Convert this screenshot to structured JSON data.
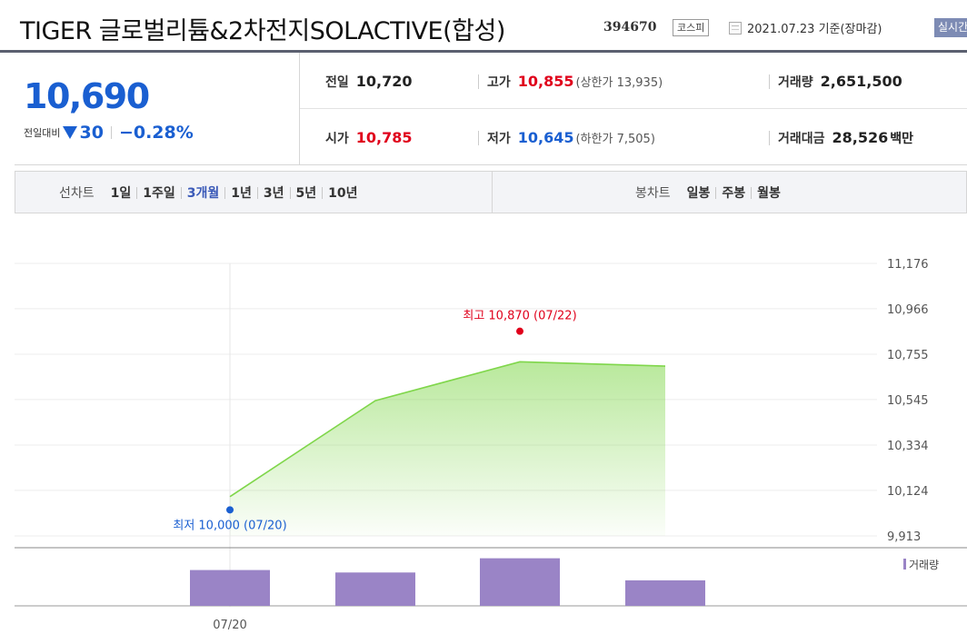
{
  "header": {
    "title": "TIGER 글로벌리튬&2차전지SOLACTIVE(합성)",
    "code": "394670",
    "market": "코스피",
    "date": "2021.07.23 기준(장마감)",
    "realtime_label": "실시간"
  },
  "quote": {
    "price": "10,690",
    "change_label": "전일대비",
    "change_value": "30",
    "change_pct": "−0.28%",
    "prev_close_label": "전일",
    "prev_close": "10,720",
    "high_label": "고가",
    "high": "10,855",
    "upper_limit": "(상한가 13,935)",
    "volume_label": "거래량",
    "volume": "2,651,500",
    "open_label": "시가",
    "open": "10,785",
    "low_label": "저가",
    "low": "10,645",
    "lower_limit": "(하한가 7,505)",
    "amount_label": "거래대금",
    "amount": "28,526",
    "amount_unit": "백만"
  },
  "period_bar": {
    "line_chart_label": "선차트",
    "line_periods": [
      "1일",
      "1주일",
      "3개월",
      "1년",
      "3년",
      "5년",
      "10년"
    ],
    "active_period": "3개월",
    "candle_chart_label": "봉차트",
    "candle_periods": [
      "일봉",
      "주봉",
      "월봉"
    ]
  },
  "colors": {
    "up": "#e0001b",
    "down": "#1a5fd1",
    "line": "#7fd64a",
    "volume": "#9a84c6"
  },
  "chart_data": {
    "type": "area",
    "y_ticks": [
      "11,176",
      "10,966",
      "10,755",
      "10,545",
      "10,334",
      "10,124",
      "9,913"
    ],
    "y_tick_values": [
      11176,
      10966,
      10755,
      10545,
      10334,
      10124,
      9913
    ],
    "ylim": [
      9913,
      11176
    ],
    "points": [
      10095,
      10540,
      10720,
      10700
    ],
    "x_tick_label": "07/20",
    "max_annotation": "최고 10,870 (07/22)",
    "max_value": 10870,
    "min_annotation": "최저 10,000 (07/20)",
    "min_value": 10000,
    "volume_legend": "거래량",
    "volume_fractions": [
      0.73,
      0.68,
      0.97,
      0.52
    ]
  }
}
